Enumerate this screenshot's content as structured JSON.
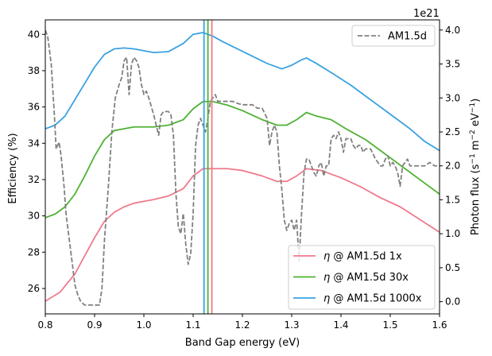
{
  "chart_data": {
    "type": "line",
    "xlabel": "Band Gap energy (eV)",
    "ylabel_left": "Efficiency (%)",
    "ylabel_right": "Photon flux (s$^{-1}$ m$^{-2}$ eV$^{-1}$)",
    "ylabel_right_parts": [
      "Photon flux (s",
      "−1",
      " m",
      "−2",
      " eV",
      "−1",
      ")"
    ],
    "offset_text": "1e21",
    "xlim": [
      0.8,
      1.6
    ],
    "ylim_left": [
      24.6,
      40.8
    ],
    "ylim_right": [
      -0.18,
      4.15
    ],
    "xticks": [
      "0.8",
      "0.9",
      "1.0",
      "1.1",
      "1.2",
      "1.3",
      "1.4",
      "1.5",
      "1.6"
    ],
    "yticks_left": [
      "26",
      "28",
      "30",
      "32",
      "34",
      "36",
      "38",
      "40"
    ],
    "yticks_right": [
      "0.0",
      "0.5",
      "1.0",
      "1.5",
      "2.0",
      "2.5",
      "3.0",
      "3.5",
      "4.0"
    ],
    "legend_top": {
      "label": "AM1.5d",
      "placement": "top-right"
    },
    "legend_bottom": {
      "placement": "bottom-right",
      "entries": [
        {
          "prefix": "η",
          "label": " @ AM1.5d 1x",
          "color": "#ef7a8b"
        },
        {
          "prefix": "η",
          "label": " @ AM1.5d 30x",
          "color": "#4fb233"
        },
        {
          "prefix": "η",
          "label": " @ AM1.5d 1000x",
          "color": "#3aa2e0"
        }
      ]
    },
    "series": [
      {
        "name": "η @ AM1.5d 1x",
        "axis": "left",
        "color": "#ef7a8b",
        "x": [
          0.8,
          0.83,
          0.86,
          0.88,
          0.9,
          0.92,
          0.94,
          0.96,
          0.98,
          1.0,
          1.02,
          1.05,
          1.08,
          1.1,
          1.12,
          1.14,
          1.17,
          1.2,
          1.24,
          1.27,
          1.29,
          1.31,
          1.33,
          1.36,
          1.4,
          1.44,
          1.48,
          1.52,
          1.56,
          1.6
        ],
        "y": [
          25.3,
          25.8,
          26.8,
          27.8,
          28.8,
          29.7,
          30.2,
          30.5,
          30.7,
          30.8,
          30.9,
          31.1,
          31.5,
          32.2,
          32.6,
          32.6,
          32.6,
          32.5,
          32.2,
          31.9,
          31.9,
          32.2,
          32.6,
          32.5,
          32.1,
          31.6,
          31.0,
          30.5,
          29.8,
          29.1
        ]
      },
      {
        "name": "η @ AM1.5d 30x",
        "axis": "left",
        "color": "#4fb233",
        "x": [
          0.8,
          0.82,
          0.84,
          0.86,
          0.88,
          0.9,
          0.92,
          0.94,
          0.96,
          0.98,
          1.0,
          1.02,
          1.05,
          1.08,
          1.1,
          1.12,
          1.14,
          1.17,
          1.2,
          1.24,
          1.27,
          1.29,
          1.31,
          1.33,
          1.35,
          1.38,
          1.41,
          1.45,
          1.49,
          1.53,
          1.57,
          1.6
        ],
        "y": [
          29.9,
          30.1,
          30.5,
          31.2,
          32.2,
          33.3,
          34.2,
          34.7,
          34.8,
          34.9,
          34.9,
          34.9,
          35.0,
          35.3,
          35.9,
          36.3,
          36.3,
          36.1,
          35.8,
          35.3,
          35.0,
          35.0,
          35.3,
          35.7,
          35.5,
          35.3,
          34.8,
          34.2,
          33.4,
          32.6,
          31.8,
          31.2
        ]
      },
      {
        "name": "η @ AM1.5d 1000x",
        "axis": "left",
        "color": "#3aa2e0",
        "x": [
          0.8,
          0.82,
          0.84,
          0.86,
          0.88,
          0.9,
          0.92,
          0.94,
          0.96,
          0.98,
          1.0,
          1.02,
          1.05,
          1.08,
          1.1,
          1.12,
          1.14,
          1.16,
          1.19,
          1.22,
          1.25,
          1.28,
          1.3,
          1.32,
          1.33,
          1.35,
          1.38,
          1.42,
          1.46,
          1.5,
          1.54,
          1.57,
          1.6
        ],
        "y": [
          34.8,
          35.0,
          35.5,
          36.4,
          37.3,
          38.2,
          38.9,
          39.2,
          39.25,
          39.2,
          39.1,
          39.0,
          39.05,
          39.5,
          40.0,
          40.1,
          39.9,
          39.6,
          39.2,
          38.8,
          38.4,
          38.1,
          38.3,
          38.6,
          38.7,
          38.4,
          37.9,
          37.2,
          36.4,
          35.6,
          34.8,
          34.1,
          33.6
        ]
      },
      {
        "name": "AM1.5d",
        "axis": "right",
        "color": "#808080",
        "dashed": true,
        "x": [
          0.8,
          0.805,
          0.812,
          0.818,
          0.822,
          0.828,
          0.832,
          0.838,
          0.842,
          0.848,
          0.855,
          0.86,
          0.866,
          0.872,
          0.88,
          0.89,
          0.9,
          0.91,
          0.915,
          0.92,
          0.928,
          0.935,
          0.942,
          0.95,
          0.955,
          0.96,
          0.965,
          0.97,
          0.975,
          0.98,
          0.985,
          0.99,
          0.995,
          1.0,
          1.005,
          1.01,
          1.02,
          1.03,
          1.035,
          1.04,
          1.05,
          1.055,
          1.06,
          1.065,
          1.07,
          1.075,
          1.08,
          1.085,
          1.09,
          1.095,
          1.1,
          1.105,
          1.11,
          1.115,
          1.12,
          1.125,
          1.13,
          1.135,
          1.14,
          1.145,
          1.15,
          1.16,
          1.17,
          1.18,
          1.19,
          1.2,
          1.21,
          1.22,
          1.23,
          1.24,
          1.25,
          1.255,
          1.26,
          1.265,
          1.27,
          1.275,
          1.28,
          1.285,
          1.29,
          1.295,
          1.3,
          1.305,
          1.31,
          1.315,
          1.32,
          1.325,
          1.33,
          1.335,
          1.34,
          1.345,
          1.35,
          1.355,
          1.36,
          1.365,
          1.37,
          1.375,
          1.38,
          1.385,
          1.39,
          1.395,
          1.4,
          1.405,
          1.41,
          1.42,
          1.425,
          1.43,
          1.435,
          1.44,
          1.445,
          1.45,
          1.46,
          1.47,
          1.48,
          1.485,
          1.49,
          1.495,
          1.5,
          1.505,
          1.51,
          1.515,
          1.52,
          1.525,
          1.53,
          1.535,
          1.54,
          1.55,
          1.56,
          1.57,
          1.58,
          1.59,
          1.6
        ],
        "y": [
          4.0,
          3.9,
          3.5,
          2.8,
          2.25,
          2.35,
          2.15,
          1.7,
          1.3,
          0.95,
          0.55,
          0.25,
          0.1,
          0.0,
          -0.05,
          -0.05,
          -0.05,
          -0.05,
          0.2,
          0.9,
          1.7,
          2.5,
          3.0,
          3.2,
          3.3,
          3.55,
          3.6,
          3.05,
          3.5,
          3.6,
          3.55,
          3.45,
          3.2,
          3.05,
          3.1,
          3.0,
          2.75,
          2.45,
          2.75,
          2.8,
          2.8,
          2.75,
          2.45,
          1.6,
          1.1,
          1.0,
          1.3,
          0.85,
          0.55,
          0.7,
          1.3,
          2.3,
          2.6,
          2.7,
          2.6,
          2.5,
          2.7,
          2.95,
          3.0,
          3.05,
          2.95,
          2.95,
          2.95,
          2.95,
          2.92,
          2.9,
          2.9,
          2.9,
          2.85,
          2.85,
          2.7,
          2.3,
          2.5,
          2.6,
          2.5,
          2.0,
          1.65,
          1.2,
          1.05,
          1.15,
          1.2,
          1.05,
          1.2,
          0.6,
          1.3,
          1.9,
          2.1,
          2.1,
          2.0,
          1.9,
          1.85,
          2.0,
          2.05,
          1.85,
          2.0,
          2.0,
          2.4,
          2.45,
          2.4,
          2.5,
          2.4,
          2.2,
          2.4,
          2.4,
          2.3,
          2.25,
          2.3,
          2.3,
          2.2,
          2.25,
          2.25,
          2.1,
          2.0,
          2.0,
          2.1,
          2.15,
          2.0,
          2.05,
          2.0,
          1.9,
          1.7,
          2.0,
          2.05,
          2.1,
          2.0,
          2.0,
          2.0,
          2.0,
          2.05,
          2.0,
          2.0
        ]
      }
    ],
    "vlines": [
      {
        "x": 1.122,
        "color": "#3aa2e0"
      },
      {
        "x": 1.13,
        "color": "#4fb233"
      },
      {
        "x": 1.138,
        "color": "#ef7a8b"
      }
    ]
  }
}
